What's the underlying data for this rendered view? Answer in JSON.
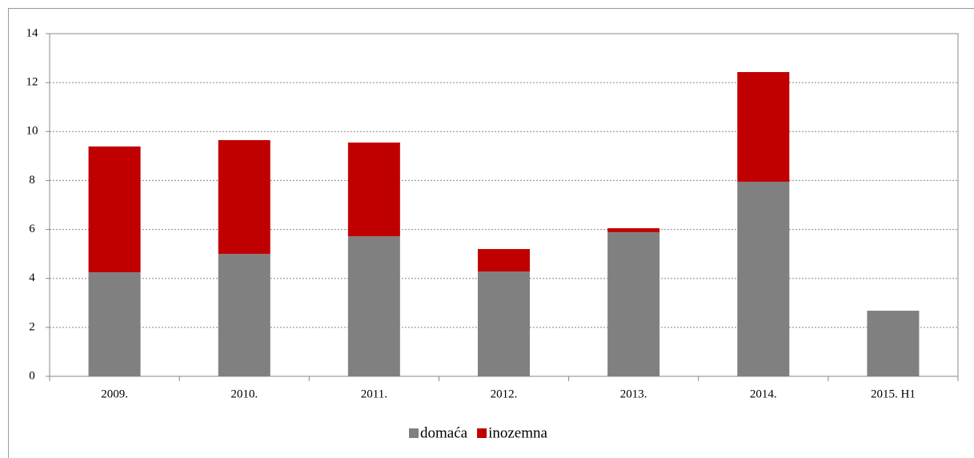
{
  "chart_data": {
    "type": "stacked_bar",
    "categories": [
      "2009.",
      "2010.",
      "2011.",
      "2012.",
      "2013.",
      "2014.",
      "2015. H1"
    ],
    "series": [
      {
        "name": "domaća",
        "color": "#808080",
        "values": [
          4.25,
          5.0,
          5.72,
          4.28,
          5.89,
          7.95,
          2.68
        ]
      },
      {
        "name": "inozemna",
        "color": "#c00000",
        "values": [
          5.14,
          4.65,
          3.83,
          0.92,
          0.16,
          4.48,
          0
        ]
      }
    ],
    "ylim": [
      0,
      14
    ],
    "yticks": [
      0,
      2,
      4,
      6,
      8,
      10,
      12,
      14
    ],
    "grid": true,
    "legend": "bottom"
  }
}
